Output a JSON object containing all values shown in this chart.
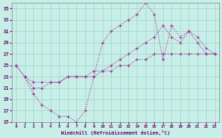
{
  "xlabel": "Windchill (Refroidissement éolien,°C)",
  "bg_color": "#c8eee8",
  "line_color": "#993399",
  "grid_color": "#9ecfbf",
  "xlim": [
    -0.5,
    23.5
  ],
  "ylim": [
    15,
    36
  ],
  "x_ticks": [
    0,
    1,
    2,
    3,
    4,
    5,
    6,
    7,
    8,
    9,
    10,
    11,
    12,
    13,
    14,
    15,
    16,
    17,
    18,
    19,
    20,
    21,
    22,
    23
  ],
  "y_ticks": [
    15,
    17,
    19,
    21,
    23,
    25,
    27,
    29,
    31,
    33,
    35
  ],
  "line1_x": [
    0,
    1,
    2,
    3,
    4,
    5,
    6,
    7,
    8,
    9,
    10,
    11,
    12,
    13,
    14,
    15,
    16,
    17,
    18,
    19,
    20,
    21,
    22,
    23
  ],
  "line1_y": [
    25,
    23,
    20,
    18,
    17,
    16,
    16,
    15,
    17,
    23,
    29,
    31,
    32,
    33,
    34,
    36,
    34,
    26,
    32,
    30,
    31,
    29,
    27,
    27
  ],
  "line2_x": [
    0,
    1,
    2,
    3,
    4,
    5,
    6,
    7,
    8,
    9,
    10,
    11,
    12,
    13,
    14,
    15,
    16,
    17,
    18,
    19,
    20,
    21,
    22,
    23
  ],
  "line2_y": [
    25,
    23,
    21,
    21,
    22,
    22,
    23,
    23,
    23,
    24,
    24,
    25,
    26,
    27,
    28,
    29,
    30,
    32,
    30,
    29,
    31,
    30,
    28,
    27
  ],
  "line3_x": [
    0,
    1,
    2,
    3,
    4,
    5,
    6,
    7,
    8,
    9,
    10,
    11,
    12,
    13,
    14,
    15,
    16,
    17,
    18,
    19,
    20,
    21,
    22,
    23
  ],
  "line3_y": [
    25,
    23,
    22,
    22,
    22,
    22,
    23,
    23,
    23,
    23,
    24,
    24,
    25,
    25,
    26,
    26,
    27,
    27,
    27,
    27,
    27,
    27,
    27,
    27
  ]
}
